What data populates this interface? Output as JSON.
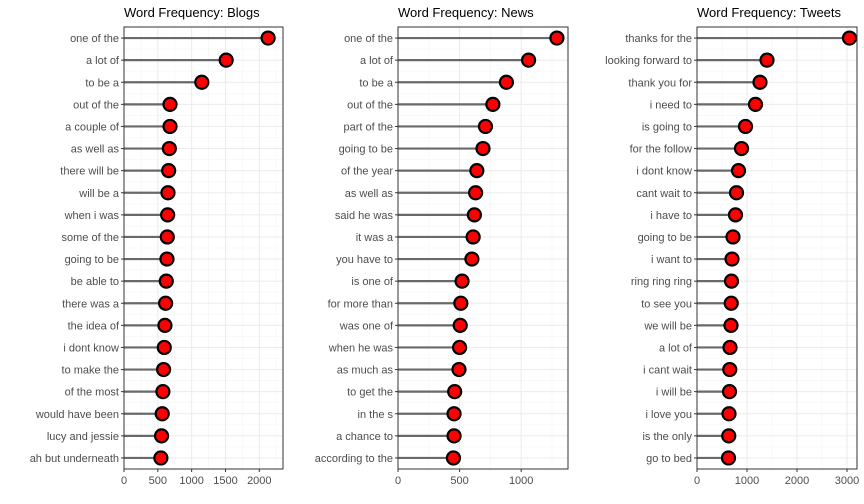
{
  "chart_data": [
    {
      "type": "lollipop",
      "title": "Word Frequency: Blogs",
      "xlim": [
        0,
        2350
      ],
      "xticks": [
        0,
        500,
        1000,
        1500,
        2000
      ],
      "grid": true,
      "categories": [
        "one of the",
        "a lot of",
        "to be a",
        "out of the",
        "a couple of",
        "as well as",
        "there will be",
        "will be a",
        "when i was",
        "some of the",
        "going to be",
        "be able to",
        "there was a",
        "the idea of",
        "i dont know",
        "to make the",
        "of the most",
        "would have been",
        "lucy and jessie",
        "ah but underneath"
      ],
      "values": [
        2130,
        1510,
        1150,
        680,
        680,
        670,
        660,
        650,
        645,
        640,
        635,
        625,
        615,
        605,
        595,
        585,
        575,
        565,
        555,
        545
      ]
    },
    {
      "type": "lollipop",
      "title": "Word Frequency: News",
      "xlim": [
        0,
        1380
      ],
      "xticks": [
        0,
        500,
        1000
      ],
      "grid": true,
      "categories": [
        "one of the",
        "a lot of",
        "to be a",
        "out of the",
        "part of the",
        "going to be",
        "of the year",
        "as well as",
        "said he was",
        "it was a",
        "you have to",
        "is one of",
        "for more than",
        "was one of",
        "when he was",
        "as much as",
        "to get the",
        "in the s",
        "a chance to",
        "according to the"
      ],
      "values": [
        1290,
        1060,
        880,
        770,
        710,
        690,
        640,
        630,
        620,
        610,
        600,
        520,
        510,
        505,
        500,
        495,
        460,
        455,
        455,
        450
      ]
    },
    {
      "type": "lollipop",
      "title": "Word Frequency: Tweets",
      "xlim": [
        0,
        3200
      ],
      "xticks": [
        0,
        1000,
        2000,
        3000
      ],
      "grid": true,
      "categories": [
        "thanks for the",
        "looking forward to",
        "thank you for",
        "i need to",
        "is going to",
        "for the follow",
        "i dont know",
        "cant wait to",
        "i have to",
        "going to be",
        "i want to",
        "ring ring ring",
        "to see you",
        "we will be",
        "a lot of",
        "i cant wait",
        "i will be",
        "i love you",
        "is the only",
        "go to bed"
      ],
      "values": [
        3050,
        1400,
        1260,
        1170,
        970,
        890,
        830,
        790,
        770,
        720,
        700,
        690,
        685,
        680,
        660,
        655,
        650,
        640,
        635,
        630
      ]
    }
  ]
}
